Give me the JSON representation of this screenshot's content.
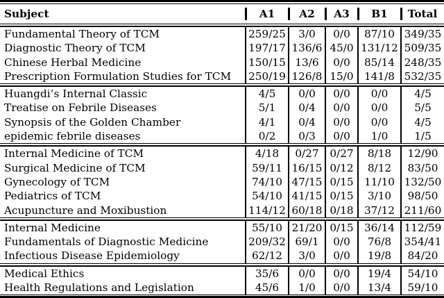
{
  "table": {
    "columns": [
      "Subject",
      "A1",
      "A2",
      "A3",
      "B1",
      "Total"
    ],
    "sections": [
      {
        "rows": [
          {
            "subject": "Fundamental Theory of TCM",
            "values": [
              "259/25",
              "3/0",
              "0/0",
              "87/10",
              "349/35"
            ]
          },
          {
            "subject": "Diagnostic Theory of TCM",
            "values": [
              "197/17",
              "136/6",
              "45/0",
              "131/12",
              "509/35"
            ]
          },
          {
            "subject": "Chinese Herbal Medicine",
            "values": [
              "150/15",
              "13/6",
              "0/0",
              "85/14",
              "248/35"
            ]
          },
          {
            "subject": "Prescription Formulation Studies for TCM",
            "values": [
              "250/19",
              "126/8",
              "15/0",
              "141/8",
              "532/35"
            ]
          }
        ]
      },
      {
        "rows": [
          {
            "subject": "Huangdi’s Internal Classic",
            "values": [
              "4/5",
              "0/0",
              "0/0",
              "0/0",
              "4/5"
            ]
          },
          {
            "subject": "Treatise on Febrile Diseases",
            "values": [
              "5/1",
              "0/4",
              "0/0",
              "0/0",
              "5/5"
            ]
          },
          {
            "subject": "Synopsis of the Golden Chamber",
            "values": [
              "4/1",
              "0/4",
              "0/0",
              "0/0",
              "4/5"
            ]
          },
          {
            "subject": "epidemic febrile diseases",
            "values": [
              "0/2",
              "0/3",
              "0/0",
              "1/0",
              "1/5"
            ]
          }
        ]
      },
      {
        "rows": [
          {
            "subject": "Internal Medicine of TCM",
            "values": [
              "4/18",
              "0/27",
              "0/27",
              "8/18",
              "12/90"
            ]
          },
          {
            "subject": "Surgical Medicine of TCM",
            "values": [
              "59/11",
              "16/15",
              "0/12",
              "8/12",
              "83/50"
            ]
          },
          {
            "subject": "Gynecology of TCM",
            "values": [
              "74/10",
              "47/15",
              "0/15",
              "11/10",
              "132/50"
            ]
          },
          {
            "subject": "Pediatrics of TCM",
            "values": [
              "54/10",
              "41/15",
              "0/15",
              "3/10",
              "98/50"
            ]
          },
          {
            "subject": "Acupuncture and Moxibustion",
            "values": [
              "114/12",
              "60/18",
              "0/18",
              "37/12",
              "211/60"
            ]
          }
        ]
      },
      {
        "rows": [
          {
            "subject": "Internal Medicine",
            "values": [
              "55/10",
              "21/20",
              "0/15",
              "36/14",
              "112/59"
            ]
          },
          {
            "subject": "Fundamentals of Diagnostic Medicine",
            "values": [
              "209/32",
              "69/1",
              "0/0",
              "76/8",
              "354/41"
            ]
          },
          {
            "subject": "Infectious Disease Epidemiology",
            "values": [
              "62/12",
              "3/0",
              "0/0",
              "19/8",
              "84/20"
            ]
          }
        ]
      },
      {
        "rows": [
          {
            "subject": "Medical Ethics",
            "values": [
              "35/6",
              "0/0",
              "0/0",
              "19/4",
              "54/10"
            ]
          },
          {
            "subject": "Health Regulations and Legislation",
            "values": [
              "45/6",
              "1/0",
              "0/0",
              "13/4",
              "59/10"
            ]
          }
        ]
      }
    ]
  }
}
